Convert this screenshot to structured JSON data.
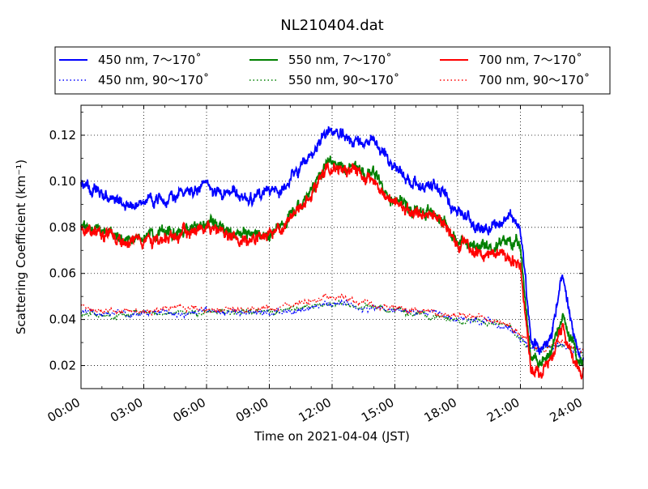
{
  "chart_data": {
    "type": "line",
    "title": "NL210404.dat",
    "xlabel": "Time on 2021-04-04 (JST)",
    "ylabel": "Scattering Coefficient (km⁻¹)",
    "x_unit": "hours",
    "xlim": [
      0,
      24
    ],
    "ylim": [
      0.01,
      0.133
    ],
    "x_ticks": [
      0,
      3,
      6,
      9,
      12,
      15,
      18,
      21,
      24
    ],
    "x_tick_labels": [
      "00:00",
      "03:00",
      "06:00",
      "09:00",
      "12:00",
      "15:00",
      "18:00",
      "21:00",
      "24:00"
    ],
    "y_ticks": [
      0.02,
      0.04,
      0.06,
      0.08,
      0.1,
      0.12
    ],
    "y_tick_labels": [
      "0.02",
      "0.04",
      "0.06",
      "0.08",
      "0.10",
      "0.12"
    ],
    "grid": true,
    "legend_position": "top",
    "x": [
      0,
      1,
      2,
      3,
      4,
      5,
      6,
      7,
      8,
      9,
      10,
      11,
      11.75,
      12.5,
      13,
      14,
      14.5,
      15,
      16,
      17,
      18,
      19,
      20,
      20.5,
      21,
      21.5,
      22,
      22.5,
      23,
      23.5,
      24
    ],
    "series": [
      {
        "name": "450 nm, 7～170˚",
        "color": "#0000ff",
        "style": "solid",
        "values": [
          0.099,
          0.094,
          0.09,
          0.09,
          0.093,
          0.095,
          0.098,
          0.095,
          0.093,
          0.094,
          0.1,
          0.111,
          0.123,
          0.119,
          0.118,
          0.116,
          0.112,
          0.106,
          0.099,
          0.097,
          0.088,
          0.08,
          0.082,
          0.085,
          0.08,
          0.03,
          0.027,
          0.035,
          0.058,
          0.034,
          0.022
        ]
      },
      {
        "name": "450 nm, 90～170˚",
        "color": "#0000ff",
        "style": "dotted",
        "values": [
          0.043,
          0.043,
          0.043,
          0.043,
          0.043,
          0.043,
          0.044,
          0.043,
          0.043,
          0.043,
          0.044,
          0.045,
          0.047,
          0.047,
          0.046,
          0.045,
          0.044,
          0.044,
          0.043,
          0.042,
          0.04,
          0.039,
          0.038,
          0.036,
          0.032,
          0.028,
          0.027,
          0.028,
          0.029,
          0.027,
          0.025
        ]
      },
      {
        "name": "550 nm, 7～170˚",
        "color": "#008000",
        "style": "solid",
        "values": [
          0.081,
          0.078,
          0.075,
          0.076,
          0.078,
          0.078,
          0.082,
          0.078,
          0.077,
          0.078,
          0.086,
          0.096,
          0.108,
          0.106,
          0.106,
          0.103,
          0.095,
          0.093,
          0.088,
          0.086,
          0.075,
          0.07,
          0.072,
          0.075,
          0.07,
          0.024,
          0.021,
          0.026,
          0.043,
          0.029,
          0.02
        ]
      },
      {
        "name": "550 nm, 90～170˚",
        "color": "#008000",
        "style": "dotted",
        "values": [
          0.043,
          0.042,
          0.042,
          0.043,
          0.043,
          0.043,
          0.044,
          0.043,
          0.043,
          0.043,
          0.044,
          0.046,
          0.047,
          0.047,
          0.046,
          0.046,
          0.044,
          0.044,
          0.043,
          0.041,
          0.039,
          0.039,
          0.038,
          0.037,
          0.032,
          0.028,
          0.027,
          0.028,
          0.029,
          0.027,
          0.025
        ]
      },
      {
        "name": "700 nm, 7～170˚",
        "color": "#ff0000",
        "style": "solid",
        "values": [
          0.08,
          0.077,
          0.074,
          0.074,
          0.076,
          0.077,
          0.081,
          0.076,
          0.075,
          0.077,
          0.084,
          0.093,
          0.105,
          0.106,
          0.104,
          0.101,
          0.093,
          0.091,
          0.086,
          0.085,
          0.074,
          0.068,
          0.069,
          0.068,
          0.062,
          0.019,
          0.018,
          0.023,
          0.035,
          0.025,
          0.018
        ]
      },
      {
        "name": "700 nm, 90～170˚",
        "color": "#ff0000",
        "style": "dotted",
        "values": [
          0.045,
          0.044,
          0.044,
          0.044,
          0.045,
          0.045,
          0.045,
          0.044,
          0.044,
          0.045,
          0.046,
          0.048,
          0.049,
          0.049,
          0.048,
          0.047,
          0.046,
          0.045,
          0.044,
          0.043,
          0.041,
          0.041,
          0.04,
          0.038,
          0.034,
          0.029,
          0.027,
          0.029,
          0.03,
          0.028,
          0.026
        ]
      }
    ]
  }
}
